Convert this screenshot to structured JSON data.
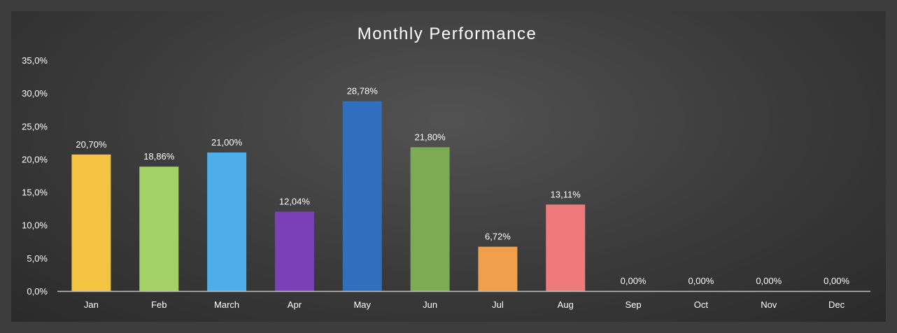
{
  "chart_data": {
    "type": "bar",
    "title": "Monthly Performance",
    "xlabel": "",
    "ylabel": "",
    "categories": [
      "Jan",
      "Feb",
      "March",
      "Apr",
      "May",
      "Jun",
      "Jul",
      "Aug",
      "Sep",
      "Oct",
      "Nov",
      "Dec"
    ],
    "values": [
      20.7,
      18.86,
      21.0,
      12.04,
      28.78,
      21.8,
      6.72,
      13.11,
      0.0,
      0.0,
      0.0,
      0.0
    ],
    "data_labels": [
      "20,70%",
      "18,86%",
      "21,00%",
      "12,04%",
      "28,78%",
      "21,80%",
      "6,72%",
      "13,11%",
      "0,00%",
      "0,00%",
      "0,00%",
      "0,00%"
    ],
    "colors": [
      "#F5C342",
      "#A3D165",
      "#4FAEE8",
      "#7B3FB8",
      "#2F6FBE",
      "#7DAA55",
      "#F0A04B",
      "#EF7A7A",
      "#999999",
      "#999999",
      "#999999",
      "#999999"
    ],
    "ylim": [
      0,
      35
    ],
    "yticks": [
      0,
      5,
      10,
      15,
      20,
      25,
      30,
      35
    ],
    "ytick_labels": [
      "0,0%",
      "5,0%",
      "10,0%",
      "15,0%",
      "20,0%",
      "25,0%",
      "30,0%",
      "35,0%"
    ],
    "grid": false,
    "legend": "none",
    "background": "#3a3a3a",
    "text_color": "#ffffff"
  }
}
